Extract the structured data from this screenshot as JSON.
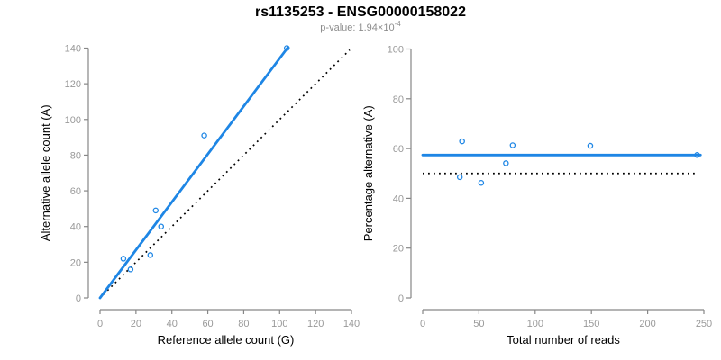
{
  "header": {
    "title": "rs1135253 - ENSG00000158022",
    "pvalue_prefix": "p-value: 1.94×10",
    "pvalue_exponent": "-4"
  },
  "colors": {
    "accent_blue": "#1e86e5",
    "axis_line": "#878787",
    "tick_label": "#999999",
    "title_text": "#000000",
    "subtitle_text": "#8c8c8c",
    "identity_black": "#000000",
    "background": "#ffffff"
  },
  "chart_data": [
    {
      "type": "scatter",
      "name": "allele-counts-plot",
      "title": "",
      "xlabel": "Reference allele count (G)",
      "ylabel": "Alternative allele count (A)",
      "xlim": [
        0,
        140
      ],
      "ylim": [
        0,
        140
      ],
      "xticks": [
        0,
        20,
        40,
        60,
        80,
        100,
        120,
        140
      ],
      "yticks": [
        0,
        20,
        40,
        60,
        80,
        100,
        120,
        140
      ],
      "grid": false,
      "points": [
        {
          "x": 13,
          "y": 22
        },
        {
          "x": 17,
          "y": 16
        },
        {
          "x": 28,
          "y": 24
        },
        {
          "x": 31,
          "y": 49
        },
        {
          "x": 34,
          "y": 40
        },
        {
          "x": 58,
          "y": 91
        },
        {
          "x": 104,
          "y": 140
        }
      ],
      "fit_line": {
        "x1": 0,
        "y1": 0,
        "x2": 104.5,
        "y2": 140.3,
        "style": "solid"
      },
      "identity_line": {
        "x1": 2,
        "y1": 2,
        "x2": 139,
        "y2": 139,
        "style": "dotted"
      }
    },
    {
      "type": "scatter",
      "name": "percentage-vs-reads-plot",
      "title": "",
      "xlabel": "Total number of reads",
      "ylabel": "Percentage alternative (A)",
      "xlim": [
        0,
        250
      ],
      "ylim": [
        0,
        100
      ],
      "xticks": [
        0,
        50,
        100,
        150,
        200,
        250
      ],
      "yticks": [
        0,
        20,
        40,
        60,
        80,
        100
      ],
      "grid": false,
      "points": [
        {
          "x": 35,
          "y": 62.9
        },
        {
          "x": 33,
          "y": 48.5
        },
        {
          "x": 52,
          "y": 46.2
        },
        {
          "x": 80,
          "y": 61.3
        },
        {
          "x": 74,
          "y": 54.1
        },
        {
          "x": 149,
          "y": 61.1
        },
        {
          "x": 244,
          "y": 57.4
        }
      ],
      "fit_line": {
        "x1": 0,
        "y1": 57.4,
        "x2": 247,
        "y2": 57.4,
        "style": "solid"
      },
      "identity_line": {
        "x1": 0,
        "y1": 50,
        "x2": 242,
        "y2": 50,
        "style": "dotted"
      }
    }
  ]
}
